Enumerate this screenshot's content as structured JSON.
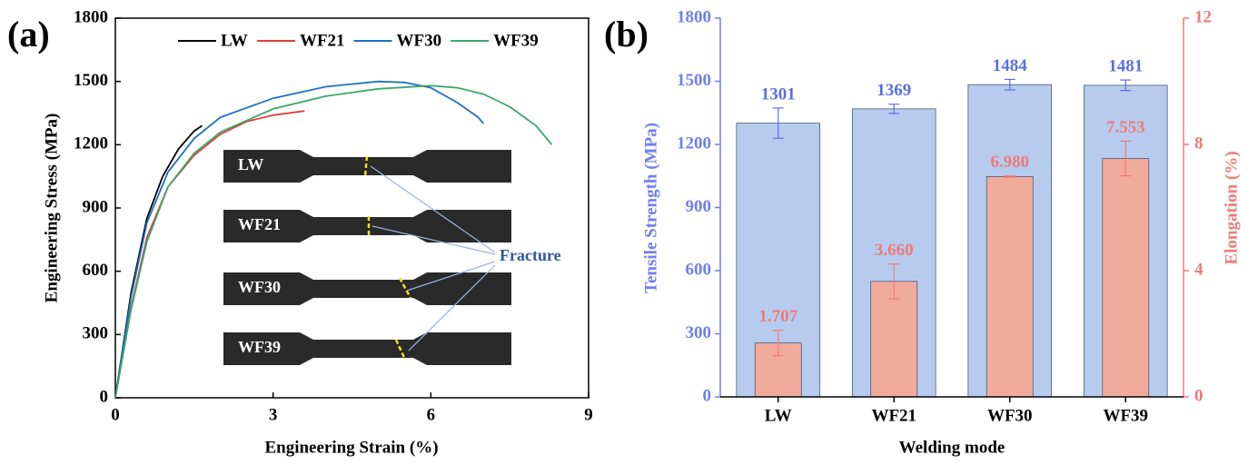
{
  "chart_data": [
    {
      "type": "line",
      "panel_label": "(a)",
      "x_label": "Engineering Strain (%)",
      "y_label": "Engineering Stress (MPa)",
      "xlim": [
        0,
        9
      ],
      "xticks": [
        0,
        3,
        6,
        9
      ],
      "ylim": [
        0,
        1800
      ],
      "yticks": [
        0,
        300,
        600,
        900,
        1200,
        1500,
        1800
      ],
      "legend": "top",
      "series": [
        {
          "name": "LW",
          "color": "#000000",
          "x": [
            0,
            0.3,
            0.6,
            0.9,
            1.2,
            1.5,
            1.65
          ],
          "values": [
            0,
            500,
            850,
            1050,
            1180,
            1265,
            1290
          ]
        },
        {
          "name": "WF21",
          "color": "#e0403a",
          "x": [
            0,
            0.3,
            0.6,
            1.0,
            1.5,
            2.0,
            2.5,
            3.0,
            3.6
          ],
          "values": [
            0,
            430,
            760,
            1000,
            1150,
            1250,
            1310,
            1340,
            1360
          ]
        },
        {
          "name": "WF30",
          "color": "#1f6fc5",
          "x": [
            0,
            0.3,
            0.6,
            1.0,
            1.5,
            2.0,
            3.0,
            4.0,
            5.0,
            5.5,
            6.0,
            6.5,
            6.9,
            7.0
          ],
          "values": [
            0,
            480,
            830,
            1070,
            1230,
            1330,
            1420,
            1475,
            1500,
            1495,
            1470,
            1400,
            1330,
            1300
          ]
        },
        {
          "name": "WF39",
          "color": "#3aa86b",
          "x": [
            0,
            0.3,
            0.6,
            1.0,
            1.5,
            2.0,
            3.0,
            4.0,
            5.0,
            6.0,
            6.5,
            7.0,
            7.5,
            8.0,
            8.3
          ],
          "values": [
            0,
            420,
            740,
            1000,
            1160,
            1260,
            1370,
            1430,
            1465,
            1480,
            1470,
            1440,
            1380,
            1290,
            1200
          ]
        }
      ],
      "inset_labels": [
        "LW",
        "WF21",
        "WF30",
        "WF39"
      ],
      "annotation": "Fracture"
    },
    {
      "type": "bar",
      "panel_label": "(b)",
      "x_label": "Welding mode",
      "y_label": "Tensile Strength (MPa)",
      "y2_label": "Elongation (%)",
      "categories": [
        "LW",
        "WF21",
        "WF30",
        "WF39"
      ],
      "ylim": [
        0,
        1800
      ],
      "yticks": [
        0,
        300,
        600,
        900,
        1200,
        1500,
        1800
      ],
      "y2lim": [
        0,
        12
      ],
      "y2ticks": [
        0,
        4,
        8,
        12
      ],
      "y_color": "#6f7ff0",
      "y2_color": "#f07a7a",
      "series": [
        {
          "name": "Tensile Strength (MPa)",
          "color": "#b7cbee",
          "label_color": "#5b6ee0",
          "values": [
            1301,
            1369,
            1484,
            1481
          ],
          "errors": [
            72,
            22,
            25,
            25
          ]
        },
        {
          "name": "Elongation (%)",
          "color": "#f1ab9b",
          "label_color": "#f07a7a",
          "axis": "y2",
          "values": [
            1.707,
            3.66,
            6.98,
            7.553
          ],
          "value_labels": [
            "1.707",
            "3.660",
            "6.980",
            "7.553"
          ],
          "errors": [
            0.4,
            0.55,
            0.02,
            0.55
          ]
        }
      ]
    }
  ]
}
